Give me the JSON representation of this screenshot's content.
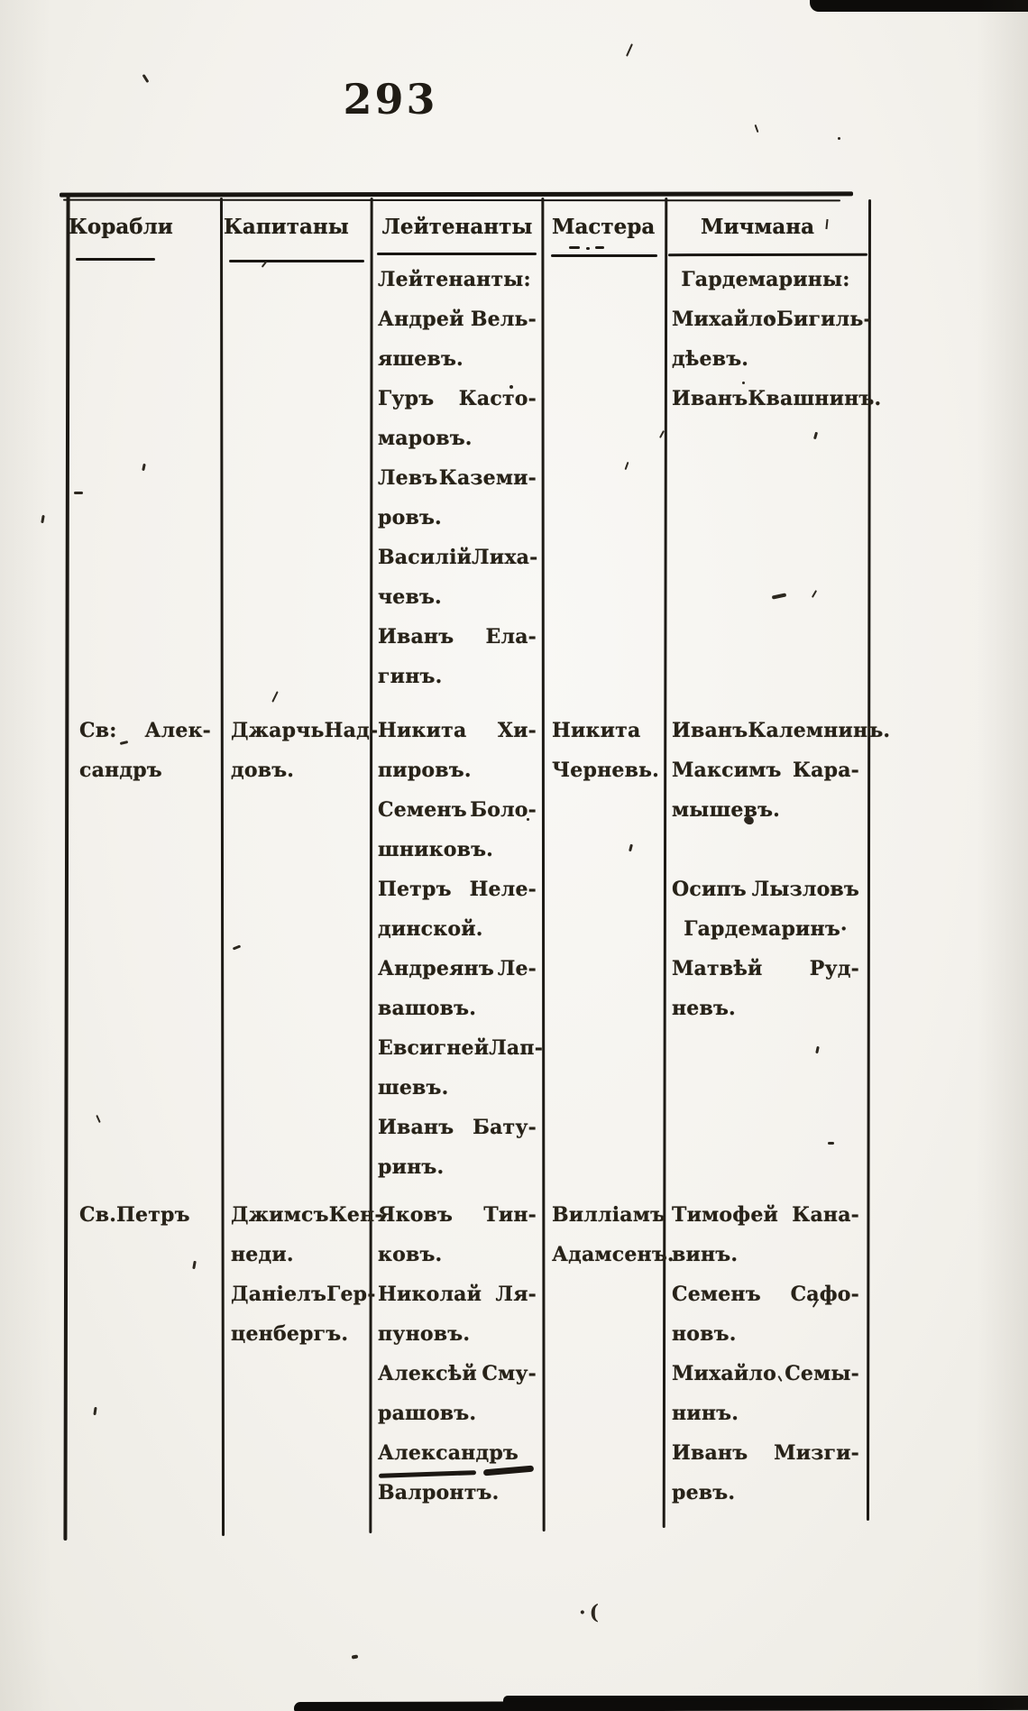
{
  "page": {
    "number": "293",
    "stray_mark": "·("
  },
  "table": {
    "headers": [
      {
        "label": "Корабли"
      },
      {
        "label": "Капитаны"
      },
      {
        "label": "Лейтенанты"
      },
      {
        "label": "Мастера"
      },
      {
        "label": "Мичмана"
      }
    ],
    "sections": [
      {
        "ships": [],
        "captains": [],
        "lieutenants": [
          {
            "t": "Лейтенанты:",
            "a": "l"
          },
          {
            "t": "Андрей Вель-",
            "a": "j"
          },
          {
            "t": "яшевъ.",
            "a": "l"
          },
          {
            "t": "Гуръ Касто-",
            "a": "j"
          },
          {
            "t": "маровъ.",
            "a": "l"
          },
          {
            "t": "Левъ Каземи-",
            "a": "j"
          },
          {
            "t": "ровъ.",
            "a": "l"
          },
          {
            "t": "Василій Лиха-",
            "a": "j"
          },
          {
            "t": "чевъ.",
            "a": "l"
          },
          {
            "t": "Иванъ Ела-",
            "a": "j"
          },
          {
            "t": "гинъ.",
            "a": "l"
          }
        ],
        "masters": [],
        "midshipmen": [
          {
            "t": "Гардемарины:",
            "a": "c"
          },
          {
            "t": "Михайло Бигиль-",
            "a": "j"
          },
          {
            "t": "дѣевъ.",
            "a": "l"
          },
          {
            "t": "Иванъ Квашнинъ.",
            "a": "j"
          }
        ]
      },
      {
        "ships": [
          {
            "t": "Св: Алек-",
            "a": "j"
          },
          {
            "t": "сандръ",
            "a": "l"
          }
        ],
        "captains": [
          {
            "t": "Джарчь Над-",
            "a": "j"
          },
          {
            "t": "довъ.",
            "a": "l"
          }
        ],
        "lieutenants": [
          {
            "t": "Никита Хи-",
            "a": "j"
          },
          {
            "t": "пировъ.",
            "a": "l"
          },
          {
            "t": "Семенъ Боло-",
            "a": "j"
          },
          {
            "t": "шниковъ.",
            "a": "l"
          },
          {
            "t": "Петръ Неле-",
            "a": "j"
          },
          {
            "t": "динской.",
            "a": "l"
          },
          {
            "t": "Андреянъ Ле-",
            "a": "j"
          },
          {
            "t": "вашовъ.",
            "a": "l"
          },
          {
            "t": "Евсигней Лап-",
            "a": "j"
          },
          {
            "t": "шевъ.",
            "a": "l"
          },
          {
            "t": "Иванъ Бату-",
            "a": "j"
          },
          {
            "t": "ринъ.",
            "a": "l"
          }
        ],
        "masters": [
          {
            "t": "Никита",
            "a": "l"
          },
          {
            "t": "Черневь.",
            "a": "l"
          }
        ],
        "midshipmen": [
          {
            "t": "Иванъ Калемнинъ.",
            "a": "j"
          },
          {
            "t": "Максимъ Кара-",
            "a": "j"
          },
          {
            "t": "мышевъ.",
            "a": "l"
          },
          {
            "t": "",
            "a": "b"
          },
          {
            "t": "Осипъ Лызловъ",
            "a": "j"
          },
          {
            "t": "Гардемаринъ·",
            "a": "c"
          },
          {
            "t": "Матвѣй Руд-",
            "a": "j"
          },
          {
            "t": "невъ.",
            "a": "l"
          }
        ]
      },
      {
        "ships": [
          {
            "t": "Св.Петръ",
            "a": "l"
          }
        ],
        "captains": [
          {
            "t": "Джимсъ Кен-",
            "a": "j"
          },
          {
            "t": "неди.",
            "a": "l"
          },
          {
            "t": "Даніелъ Гер-",
            "a": "j"
          },
          {
            "t": "ценбергъ.",
            "a": "l"
          }
        ],
        "lieutenants": [
          {
            "t": "Яковъ Тин-",
            "a": "j"
          },
          {
            "t": "ковъ.",
            "a": "l"
          },
          {
            "t": "Николай Ля-",
            "a": "j"
          },
          {
            "t": "пуновъ.",
            "a": "l"
          },
          {
            "t": "Алексѣй Сму-",
            "a": "j"
          },
          {
            "t": "рашовъ.",
            "a": "l"
          },
          {
            "t": "Александръ",
            "a": "l"
          },
          {
            "t": "Валронтъ.",
            "a": "l"
          }
        ],
        "masters": [
          {
            "t": "Вилліамъ",
            "a": "l"
          },
          {
            "t": "Адамсенъ.",
            "a": "l"
          }
        ],
        "midshipmen": [
          {
            "t": "Тимофей Кана-",
            "a": "j"
          },
          {
            "t": "винъ.",
            "a": "l"
          },
          {
            "t": "Семенъ Сафо-",
            "a": "j"
          },
          {
            "t": "новъ.",
            "a": "l"
          },
          {
            "t": "Михайло Семы-",
            "a": "j"
          },
          {
            "t": "нинъ.",
            "a": "l"
          },
          {
            "t": "Иванъ Мизги-",
            "a": "j"
          },
          {
            "t": "ревъ.",
            "a": "l"
          }
        ]
      }
    ]
  }
}
